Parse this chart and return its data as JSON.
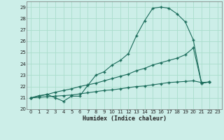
{
  "xlabel": "Humidex (Indice chaleur)",
  "background_color": "#cceee8",
  "grid_color": "#aaddcc",
  "line_color": "#1a6b5a",
  "xlim": [
    -0.5,
    23.5
  ],
  "ylim": [
    20,
    29.5
  ],
  "yticks": [
    20,
    21,
    22,
    23,
    24,
    25,
    26,
    27,
    28,
    29
  ],
  "xticks": [
    0,
    1,
    2,
    3,
    4,
    5,
    6,
    7,
    8,
    9,
    10,
    11,
    12,
    13,
    14,
    15,
    16,
    17,
    18,
    19,
    20,
    21,
    22,
    23
  ],
  "line1_x": [
    0,
    1,
    2,
    3,
    4,
    5,
    6,
    7,
    8,
    9,
    10,
    11,
    12,
    13,
    14,
    15,
    16,
    17,
    18,
    19,
    20,
    21,
    22
  ],
  "line1_y": [
    21.0,
    21.2,
    21.3,
    21.0,
    20.7,
    21.15,
    21.15,
    22.1,
    23.0,
    23.3,
    23.9,
    24.3,
    24.9,
    26.5,
    27.8,
    28.9,
    29.0,
    28.9,
    28.4,
    27.7,
    26.1,
    22.3,
    22.4
  ],
  "line2_x": [
    0,
    2,
    3,
    4,
    5,
    6,
    7,
    8,
    9,
    10,
    11,
    12,
    13,
    14,
    15,
    16,
    17,
    18,
    19,
    20,
    21,
    22
  ],
  "line2_y": [
    21.0,
    21.3,
    21.5,
    21.65,
    21.8,
    22.0,
    22.15,
    22.3,
    22.5,
    22.7,
    22.9,
    23.1,
    23.4,
    23.6,
    23.9,
    24.1,
    24.3,
    24.5,
    24.8,
    25.4,
    22.3,
    22.4
  ],
  "line3_x": [
    0,
    1,
    2,
    3,
    4,
    5,
    6,
    7,
    8,
    9,
    10,
    11,
    12,
    13,
    14,
    15,
    16,
    17,
    18,
    19,
    20,
    21,
    22
  ],
  "line3_y": [
    21.0,
    21.05,
    21.1,
    21.15,
    21.2,
    21.25,
    21.35,
    21.45,
    21.55,
    21.65,
    21.7,
    21.8,
    21.9,
    22.0,
    22.05,
    22.15,
    22.25,
    22.35,
    22.4,
    22.45,
    22.5,
    22.35,
    22.4
  ]
}
